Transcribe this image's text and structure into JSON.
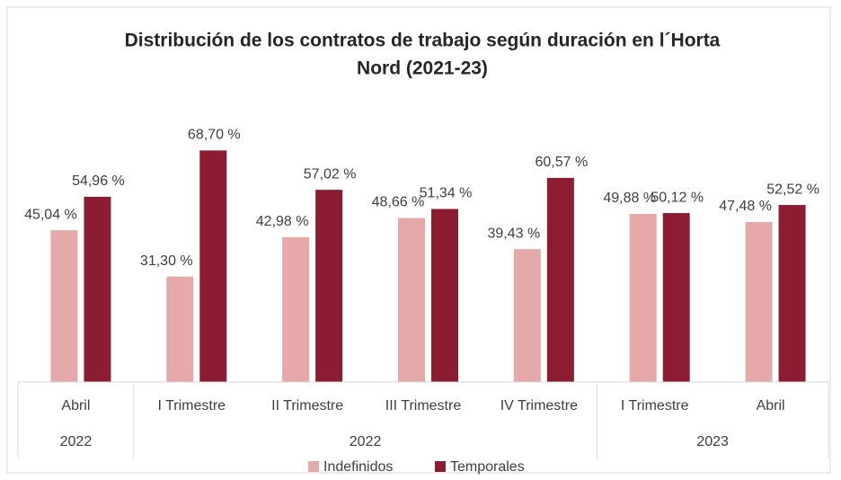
{
  "chart_data": {
    "type": "bar",
    "title": [
      "Distribución de los contratos de trabajo según duración en l´Horta",
      "Nord (2021-23)"
    ],
    "categories": [
      "Abril",
      "I Trimestre",
      "II Trimestre",
      "III Trimestre",
      "IV Trimestre",
      "I Trimestre",
      "Abril"
    ],
    "groups": [
      {
        "label": "2022",
        "span": 1
      },
      {
        "label": "2022",
        "span": 4
      },
      {
        "label": "2023",
        "span": 2
      }
    ],
    "series": [
      {
        "name": "Indefinidos",
        "color": "#e6a9aa",
        "values": [
          45.04,
          31.3,
          42.98,
          48.66,
          39.43,
          49.88,
          47.48
        ],
        "value_labels": [
          "45,04 %",
          "31,30 %",
          "42,98 %",
          "48,66 %",
          "39,43 %",
          "49,88 %",
          "47,48 %"
        ]
      },
      {
        "name": "Temporales",
        "color": "#8b1c31",
        "values": [
          54.96,
          68.7,
          57.02,
          51.34,
          60.57,
          50.12,
          52.52
        ],
        "value_labels": [
          "54,96 %",
          "68,70 %",
          "57,02 %",
          "51,34 %",
          "60,57 %",
          "50,12 %",
          "52,52 %"
        ]
      }
    ],
    "ylim": [
      0,
      80
    ],
    "legend": "bottom"
  }
}
